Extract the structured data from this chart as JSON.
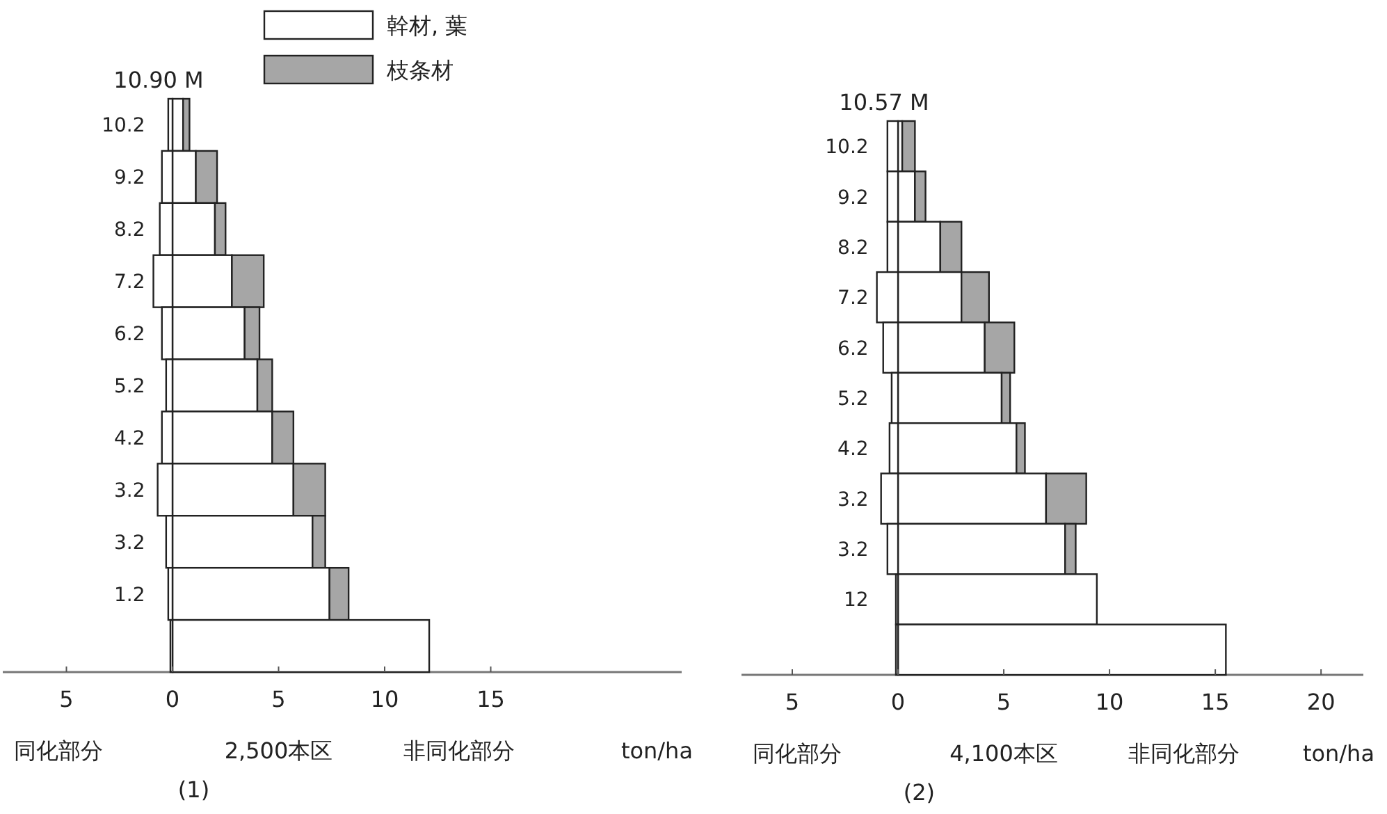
{
  "chart_data": [
    {
      "type": "bar",
      "orientation": "horizontal",
      "stacked": true,
      "legend": "top right",
      "categories": [
        "10.2",
        "9.2",
        "8.2",
        "7.2",
        "6.2",
        "5.2",
        "4.2",
        "3.2",
        "3.2",
        "1.2",
        null
      ],
      "series": [
        {
          "name": "幹材, 葉",
          "color": "#ffffff",
          "values": [
            0.5,
            1.1,
            2.0,
            2.8,
            3.4,
            4.0,
            4.7,
            5.7,
            6.6,
            7.4,
            12.1
          ]
        },
        {
          "name": "枝条材",
          "color": "#a6a6a6",
          "values": [
            0.3,
            1.0,
            0.5,
            1.5,
            0.7,
            0.7,
            1.0,
            1.5,
            0.6,
            0.9,
            null
          ]
        },
        {
          "color": "#ffffff",
          "values": [
            -0.2,
            -0.5,
            -0.6,
            -0.9,
            -0.5,
            -0.3,
            -0.5,
            -0.7,
            -0.3,
            -0.2,
            -0.1
          ]
        }
      ],
      "xlim": [
        -8,
        24
      ],
      "xticks": [
        {
          "value": -5,
          "label": "5"
        },
        0,
        5,
        10,
        15
      ],
      "xlabel": "ton/ha",
      "annotations": [
        "同化部分",
        "2,500本区",
        "非同化部分",
        "(1)",
        "10.90 M"
      ]
    },
    {
      "type": "bar",
      "orientation": "horizontal",
      "stacked": true,
      "categories": [
        "10.2",
        "9.2",
        "8.2",
        "7.2",
        "6.2",
        "5.2",
        "4.2",
        "3.2",
        "3.2",
        "12",
        null
      ],
      "series": [
        {
          "color": "#ffffff",
          "values": [
            0.2,
            0.8,
            2.0,
            3.0,
            4.1,
            4.9,
            5.6,
            7.0,
            7.9,
            9.4,
            15.5
          ]
        },
        {
          "color": "#a6a6a6",
          "values": [
            0.6,
            0.5,
            1.0,
            1.3,
            1.4,
            0.4,
            0.4,
            1.9,
            0.5,
            null,
            null
          ]
        },
        {
          "color": "#ffffff",
          "values": [
            -0.5,
            -0.5,
            -0.5,
            -1.0,
            -0.7,
            -0.3,
            -0.4,
            -0.8,
            -0.5,
            -0.1,
            -0.1
          ]
        }
      ],
      "xlim": [
        -7.4,
        22
      ],
      "xticks": [
        {
          "value": -5,
          "label": "5"
        },
        0,
        5,
        10,
        15,
        20
      ],
      "xlabel": "ton/ha",
      "annotations": [
        "同化部分",
        "4,100本区",
        "非同化部分",
        "(2)",
        "10.57 M"
      ]
    }
  ]
}
